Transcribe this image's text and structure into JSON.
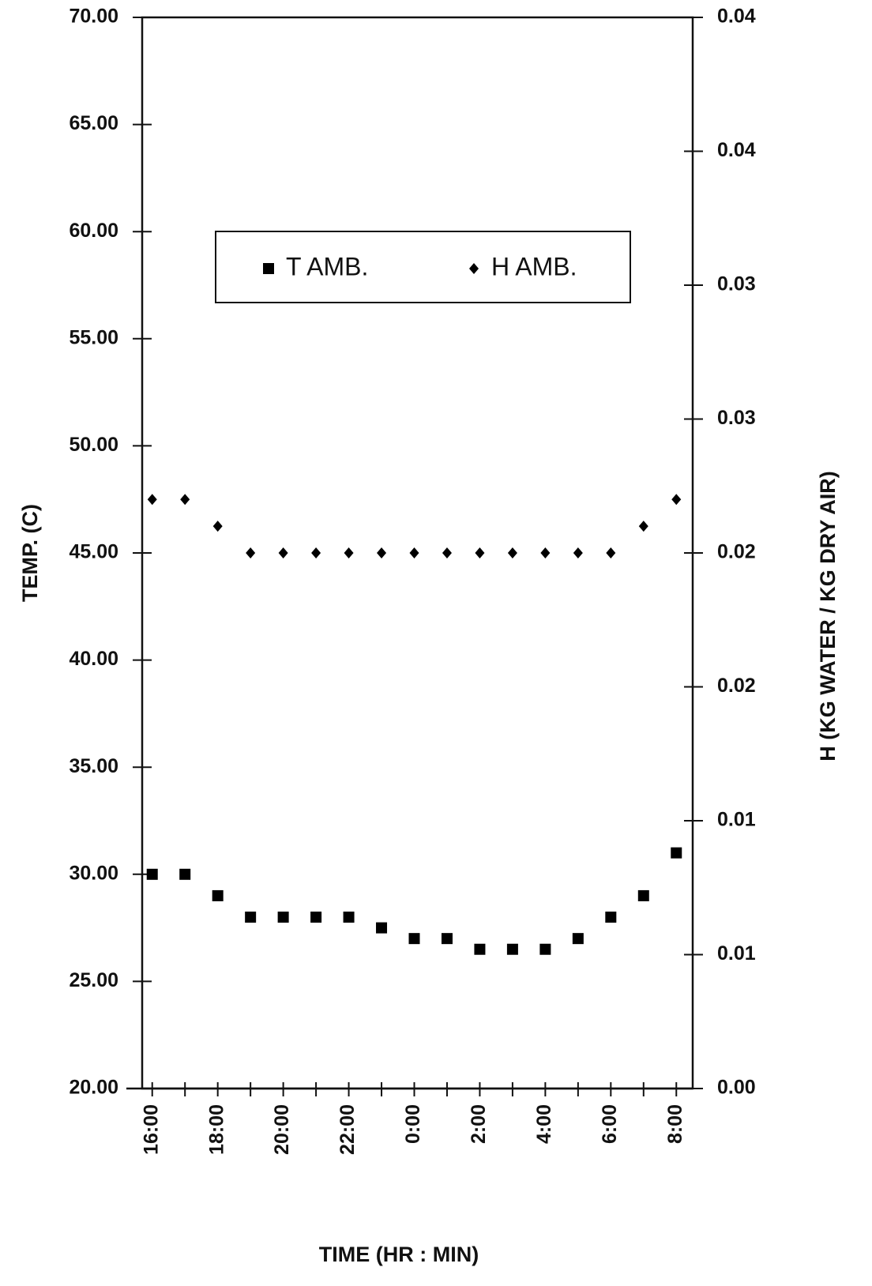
{
  "chart_data": {
    "type": "scatter",
    "x_label": "TIME (HR : MIN)",
    "y_label": "TEMP. (C)",
    "y2_label": "H (KG WATER / KG DRY AIR)",
    "categories": [
      "16:00",
      null,
      "18:00",
      null,
      "20:00",
      null,
      "22:00",
      null,
      "0:00",
      null,
      "2:00",
      null,
      "4:00",
      null,
      "6:00",
      null,
      "8:00"
    ],
    "series": [
      {
        "name": "T AMB.",
        "color": "#000000",
        "marker": "square",
        "values": [
          30,
          30,
          29,
          28,
          28,
          28,
          28,
          27.5,
          27,
          27,
          26.5,
          26.5,
          26.5,
          27,
          28,
          29,
          31
        ]
      },
      {
        "name": "H AMB.",
        "color": "#000000",
        "marker": "diamond",
        "axis": "y2",
        "values": [
          0.022,
          0.022,
          0.021,
          0.02,
          0.02,
          0.02,
          0.02,
          0.02,
          0.02,
          0.02,
          0.02,
          0.02,
          0.02,
          0.02,
          0.02,
          0.021,
          0.022
        ]
      }
    ],
    "ylim": [
      20,
      70
    ],
    "yticks": [
      {
        "value": 20,
        "label": "20.00"
      },
      {
        "value": 25,
        "label": "25.00"
      },
      {
        "value": 30,
        "label": "30.00"
      },
      {
        "value": 35,
        "label": "35.00"
      },
      {
        "value": 40,
        "label": "40.00"
      },
      {
        "value": 45,
        "label": "45.00"
      },
      {
        "value": 50,
        "label": "50.00"
      },
      {
        "value": 55,
        "label": "55.00"
      },
      {
        "value": 60,
        "label": "60.00"
      },
      {
        "value": 65,
        "label": "65.00"
      },
      {
        "value": 70,
        "label": "70.00"
      }
    ],
    "y2lim": [
      0,
      0.04
    ],
    "y2ticks": [
      {
        "value": 0,
        "label": "0.00"
      },
      {
        "value": 0.005,
        "label": "0.01"
      },
      {
        "value": 0.01,
        "label": "0.01"
      },
      {
        "value": 0.015,
        "label": "0.02"
      },
      {
        "value": 0.02,
        "label": "0.02"
      },
      {
        "value": 0.025,
        "label": "0.03"
      },
      {
        "value": 0.03,
        "label": "0.03"
      },
      {
        "value": 0.035,
        "label": "0.04"
      },
      {
        "value": 0.04,
        "label": "0.04"
      }
    ],
    "grid": false
  }
}
